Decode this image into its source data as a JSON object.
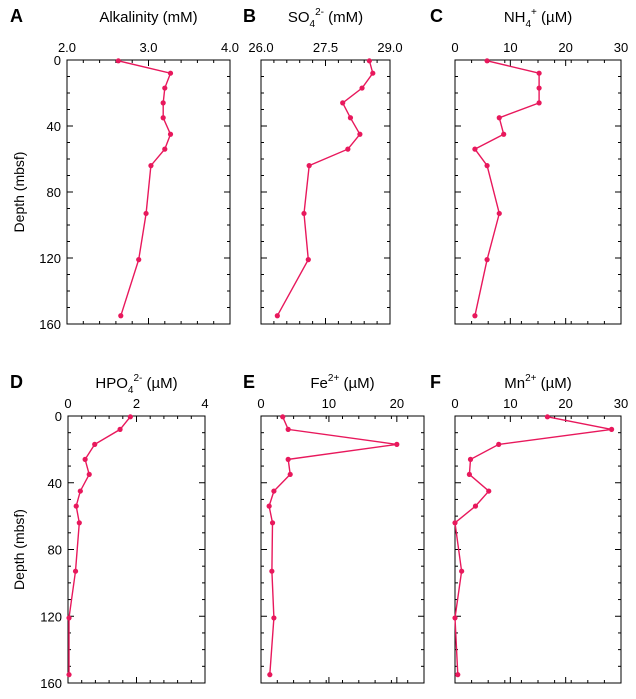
{
  "chart_data": [
    {
      "panel": "A",
      "type": "line",
      "title_parts": [
        "Alkalinity (mM)"
      ],
      "xlim": [
        2.0,
        4.0
      ],
      "xticks": [
        2.0,
        3.0,
        4.0
      ],
      "xtick_labels": [
        "2.0",
        "3.0",
        "4.0"
      ],
      "ylim": [
        0,
        160
      ],
      "yticks": [
        0,
        40,
        80,
        120,
        160
      ],
      "ylabel": "Depth (mbsf)",
      "depth": [
        0.5,
        8,
        17,
        26,
        35,
        45,
        54,
        64,
        93,
        121,
        155
      ],
      "x": [
        2.63,
        3.27,
        3.2,
        3.18,
        3.18,
        3.27,
        3.2,
        3.03,
        2.97,
        2.88,
        2.66
      ]
    },
    {
      "panel": "B",
      "type": "line",
      "title_parts": [
        "SO",
        "4",
        "2-",
        " (mM)"
      ],
      "xlim": [
        26.0,
        29.0
      ],
      "xticks": [
        26.0,
        27.5,
        29.0
      ],
      "xtick_labels": [
        "26.0",
        "27.5",
        "29.0"
      ],
      "ylim": [
        0,
        160
      ],
      "yticks": [
        0,
        40,
        80,
        120,
        160
      ],
      "ylabel": "",
      "depth": [
        0.5,
        8,
        17,
        26,
        35,
        45,
        54,
        64,
        93,
        121,
        155
      ],
      "x": [
        28.52,
        28.6,
        28.35,
        27.9,
        28.08,
        28.3,
        28.02,
        27.12,
        27.0,
        27.1,
        26.38
      ]
    },
    {
      "panel": "C",
      "type": "line",
      "title_parts": [
        "NH",
        "4",
        "+",
        " (µM)"
      ],
      "xlim": [
        0,
        30
      ],
      "xticks": [
        0,
        10,
        20,
        30
      ],
      "xtick_labels": [
        "0",
        "10",
        "20",
        "30"
      ],
      "ylim": [
        0,
        160
      ],
      "yticks": [
        0,
        40,
        80,
        120,
        160
      ],
      "ylabel": "",
      "depth": [
        0.5,
        8,
        17,
        26,
        35,
        45,
        54,
        64,
        93,
        121,
        155
      ],
      "x": [
        5.8,
        15.2,
        15.2,
        15.2,
        8.0,
        8.8,
        3.6,
        5.8,
        8.0,
        5.8,
        3.6
      ]
    },
    {
      "panel": "D",
      "type": "line",
      "title_parts": [
        "HPO",
        "4",
        "2-",
        " (µM)"
      ],
      "xlim": [
        0,
        4
      ],
      "xticks": [
        0,
        2,
        4
      ],
      "xtick_labels": [
        "0",
        "2",
        "4"
      ],
      "ylim": [
        0,
        160
      ],
      "yticks": [
        0,
        40,
        80,
        120,
        160
      ],
      "ylabel": "Depth (mbsf)",
      "depth": [
        0.5,
        8,
        17,
        26,
        35,
        45,
        54,
        64,
        93,
        121,
        155
      ],
      "x": [
        1.82,
        1.52,
        0.78,
        0.5,
        0.62,
        0.36,
        0.24,
        0.33,
        0.22,
        0.03,
        0.03
      ]
    },
    {
      "panel": "E",
      "type": "line",
      "title_parts": [
        "Fe",
        "2+",
        " (µM)"
      ],
      "xlim": [
        0,
        24
      ],
      "xticks": [
        0,
        10,
        20
      ],
      "xtick_labels": [
        "0",
        "10",
        "20"
      ],
      "ylim": [
        0,
        160
      ],
      "yticks": [
        0,
        40,
        80,
        120,
        160
      ],
      "ylabel": "",
      "depth": [
        0.5,
        8,
        17,
        26,
        35,
        45,
        54,
        64,
        93,
        121,
        155
      ],
      "x": [
        3.2,
        4.0,
        20.0,
        4.0,
        4.3,
        1.9,
        1.2,
        1.7,
        1.6,
        1.9,
        1.3
      ]
    },
    {
      "panel": "F",
      "type": "line",
      "title_parts": [
        "Mn",
        "2+",
        " (µM)"
      ],
      "xlim": [
        0,
        30
      ],
      "xticks": [
        0,
        10,
        20,
        30
      ],
      "xtick_labels": [
        "0",
        "10",
        "20",
        "30"
      ],
      "ylim": [
        0,
        160
      ],
      "yticks": [
        0,
        40,
        80,
        120,
        160
      ],
      "ylabel": "",
      "depth": [
        0.5,
        8,
        17,
        26,
        35,
        45,
        54,
        64,
        93,
        121,
        155
      ],
      "x": [
        16.7,
        28.3,
        7.9,
        2.8,
        2.6,
        6.1,
        3.7,
        0.0,
        1.2,
        0.0,
        0.5
      ]
    }
  ],
  "colors": {
    "series": "#e8185c",
    "axes": "#000000"
  }
}
